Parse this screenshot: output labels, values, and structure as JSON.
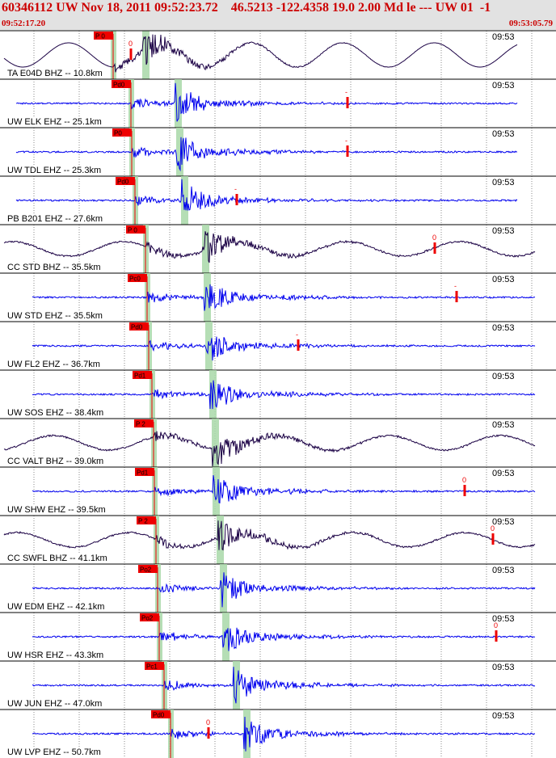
{
  "header": {
    "title": "60346112 UW Nov 18, 2011 09:52:23.72    46.5213 -122.4358 19.0 2.00 Md le --- UW 01  -1",
    "start_time": "09:52:17.20",
    "end_time": "09:53:05.79"
  },
  "colors": {
    "header_bg": "#e2e2e2",
    "header_text": "#cc0000",
    "ehz_trace": "#0000ee",
    "bhz_trace": "#1a0044",
    "pick_flag": "#ee0000",
    "phase_band": "#a8d8a8",
    "grid": "#8a8a8a"
  },
  "traces": [
    {
      "label": "TA E04D BHZ -- 10.8km",
      "time": "09:53",
      "pick": "P 0",
      "type": "BHZ",
      "p": 140,
      "s": 180,
      "mark": "0"
    },
    {
      "label": "UW ELK EHZ -- 25.1km",
      "time": "09:53",
      "pick": "Pd0",
      "type": "EHZ",
      "p": 162,
      "s": 220,
      "mark": "-"
    },
    {
      "label": "UW TDL EHZ -- 25.3km",
      "time": "09:53",
      "pick": "P0",
      "type": "EHZ",
      "p": 163,
      "s": 222,
      "mark": "-"
    },
    {
      "label": "PB B201 EHZ -- 27.6km",
      "time": "09:53",
      "pick": "Pd0",
      "type": "EHZ",
      "p": 167,
      "s": 228,
      "mark": "-"
    },
    {
      "label": "CC STD BHZ -- 35.5km",
      "time": "09:53",
      "pick": "P 0",
      "type": "BHZ",
      "p": 180,
      "s": 254,
      "mark": "0"
    },
    {
      "label": "UW STD EHZ -- 35.5km",
      "time": "09:53",
      "pick": "Pc0",
      "type": "EHZ",
      "p": 182,
      "s": 256,
      "mark": "-"
    },
    {
      "label": "UW FL2 EHZ -- 36.7km",
      "time": "09:53",
      "pick": "Pd0",
      "type": "EHZ",
      "p": 184,
      "s": 258,
      "mark": "-"
    },
    {
      "label": "UW SOS EHZ -- 38.4km",
      "time": "09:53",
      "pick": "Pd1",
      "type": "EHZ",
      "p": 188,
      "s": 263,
      "mark": ""
    },
    {
      "label": "CC VALT BHZ -- 39.0km",
      "time": "09:53",
      "pick": "P 2",
      "type": "BHZ",
      "p": 190,
      "s": 266,
      "mark": ""
    },
    {
      "label": "UW SHW EHZ -- 39.5km",
      "time": "09:53",
      "pick": "Pd1",
      "type": "EHZ",
      "p": 191,
      "s": 267,
      "mark": "0"
    },
    {
      "label": "CC SWFL BHZ -- 41.1km",
      "time": "09:53",
      "pick": "P 2",
      "type": "BHZ",
      "p": 193,
      "s": 272,
      "mark": "0"
    },
    {
      "label": "UW EDM EHZ -- 42.1km",
      "time": "09:53",
      "pick": "Po2",
      "type": "EHZ",
      "p": 195,
      "s": 276,
      "mark": ""
    },
    {
      "label": "UW HSR EHZ -- 43.3km",
      "time": "09:53",
      "pick": "Po2",
      "type": "EHZ",
      "p": 197,
      "s": 279,
      "mark": "0"
    },
    {
      "label": "UW JUN EHZ -- 47.0km",
      "time": "09:53",
      "pick": "Pc1",
      "type": "EHZ",
      "p": 203,
      "s": 292,
      "mark": ""
    },
    {
      "label": "UW LVP EHZ -- 50.7km",
      "time": "09:53",
      "pick": "Pd0",
      "type": "EHZ",
      "p": 211,
      "s": 305,
      "mark": "0"
    }
  ]
}
